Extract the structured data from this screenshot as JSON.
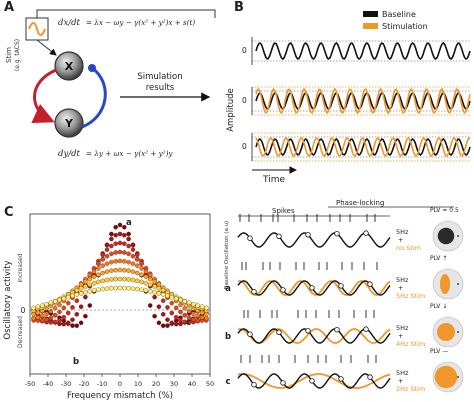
{
  "panels": {
    "a": "A",
    "b": "B",
    "c": "C"
  },
  "model": {
    "stim_label": "Stim",
    "stim_sub": "(e.g. tACS)",
    "eq_x_lhs": "dx/dt",
    "eq_x_rhs": "= λx − ωy − γ(x² + y²)x + s(t)",
    "eq_y_lhs": "dy/dt",
    "eq_y_rhs": "= λy + ωx − γ(x² + y²)y",
    "node_x": "X",
    "node_y": "Y",
    "arrow_label_line1": "Simulation",
    "arrow_label_line2": "results"
  },
  "timeseries": {
    "legend": [
      {
        "label": "Baseline",
        "color": "#111111"
      },
      {
        "label": "Stimulation",
        "color": "#f0962a"
      }
    ],
    "ylabel": "Amplitude",
    "xlabel": "Time",
    "zero_tick": "0"
  },
  "chart_data": {
    "type": "scatter",
    "xlabel": "Frequency mismatch (%)",
    "ylabel": "Oscillatory activity",
    "y_increased": "Increased",
    "y_decreased": "Decreased",
    "y_zero": "0",
    "x_ticks": [
      "-50",
      "-40",
      "-30",
      "-20",
      "-10",
      "0",
      "10",
      "20",
      "30",
      "40",
      "50"
    ],
    "xlim": [
      -50,
      50
    ],
    "markers": [
      "a",
      "b",
      "c"
    ],
    "colors": [
      "#7a0a0a",
      "#a31616",
      "#c92a1f",
      "#e04a1f",
      "#ef7a1d",
      "#f6a623",
      "#fbd13a",
      "#fdf27a"
    ]
  },
  "phase_panel": {
    "spikes_label": "Spikes",
    "phaselock_label": "Phase-locking",
    "baseline_ylabel": "Baseline Oscillation (a.u)",
    "rows": [
      {
        "marker": "",
        "freq": "5Hz",
        "plus": "+",
        "stim": "no Stim",
        "plv": "PLV = 0.5"
      },
      {
        "marker": "a",
        "freq": "5Hz",
        "plus": "+",
        "stim": "5Hz Stim",
        "plv": "PLV ↑"
      },
      {
        "marker": "b",
        "freq": "5Hz",
        "plus": "+",
        "stim": "4Hz Stim",
        "plv": "PLV ↓"
      },
      {
        "marker": "c",
        "freq": "5Hz",
        "plus": "+",
        "stim": "2Hz Stim",
        "plv": "PLV —"
      }
    ]
  }
}
